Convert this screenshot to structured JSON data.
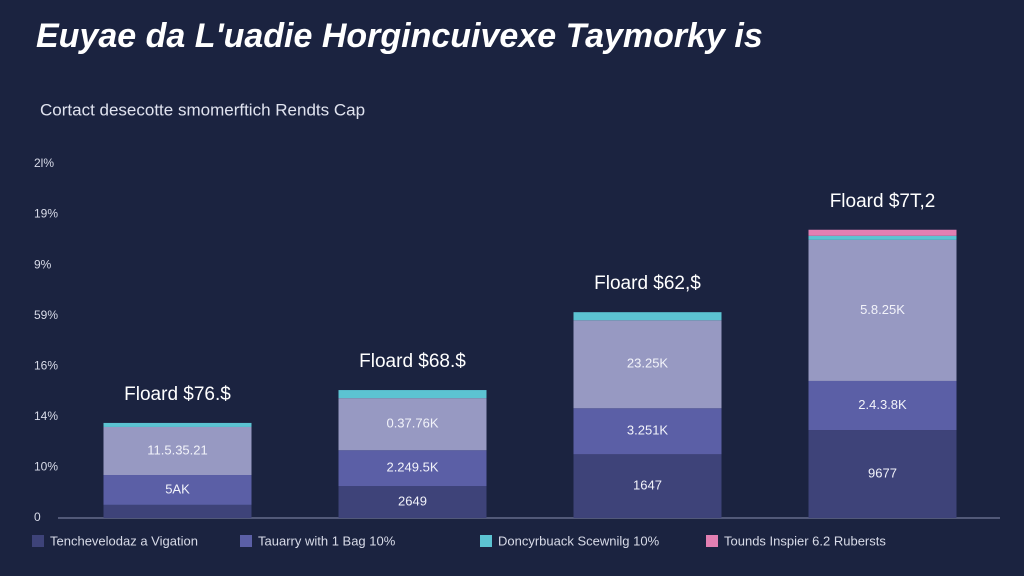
{
  "chart_data": {
    "type": "stacked-bar",
    "title": "Euyae da L'uadie Horgincuivexe Taymorky is",
    "subtitle": "Cortact desecotte smomerftich Rendts Cap",
    "categories": [
      null,
      null,
      null,
      null
    ],
    "ylim": [
      0,
      7
    ],
    "yticks": [
      {
        "value": 0,
        "label": "0"
      },
      {
        "value": 1,
        "label": "10%"
      },
      {
        "value": 2,
        "label": "14%"
      },
      {
        "value": 3,
        "label": "16%"
      },
      {
        "value": 4,
        "label": "59%"
      },
      {
        "value": 5,
        "label": "9%"
      },
      {
        "value": 6,
        "label": "19%"
      },
      {
        "value": 7,
        "label": "2l%"
      }
    ],
    "series": [
      {
        "name": "Tenchevelodaz a Vigation",
        "color": "#3e4379",
        "values": [
          0.26,
          0.63,
          1.26,
          1.74
        ],
        "labels": [
          null,
          "2649",
          "1647",
          "9677"
        ]
      },
      {
        "name": "Tauarry with 1 Bag 10%",
        "color": "#5b5fa6",
        "values": [
          0.59,
          0.71,
          0.91,
          0.97
        ],
        "labels": [
          "5AK",
          "2.249.5K",
          "3.251K",
          "2.4.3.8K"
        ]
      },
      {
        "color": "#9799c2",
        "values": [
          0.95,
          1.03,
          1.74,
          2.79
        ],
        "labels": [
          "11.5.35.21",
          "0.37.76K",
          "23.25K",
          "5.8.25K"
        ]
      },
      {
        "name": "Doncyrbuack Scewnilg 10%",
        "color": "#5cc3d2",
        "values": [
          0.08,
          0.16,
          0.16,
          0.08
        ]
      },
      {
        "name": "Tounds Inspier 6.2 Rubersts",
        "color": "#e27fb2",
        "values": [
          0,
          0,
          0,
          0.12
        ]
      }
    ],
    "total_labels": [
      "Floard $76.$",
      "Floard $68.$",
      "Floard $62,$",
      "Floard $7T,2"
    ]
  }
}
